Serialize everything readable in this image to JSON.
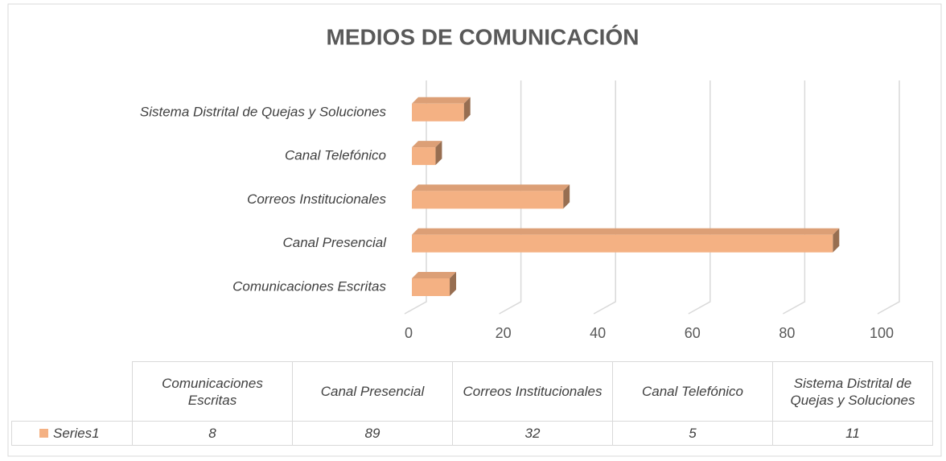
{
  "chart_data": {
    "type": "bar",
    "title": "MEDIOS DE COMUNICACIÓN",
    "categories": [
      "Comunicaciones Escritas",
      "Canal Presencial",
      "Correos Institucionales",
      "Canal Telefónico",
      "Sistema Distrital de Quejas y Soluciones"
    ],
    "series": [
      {
        "name": "Series1",
        "color": "#f4b183",
        "values": [
          8,
          89,
          32,
          5,
          11
        ]
      }
    ],
    "xlim": [
      0,
      100
    ],
    "xticks": [
      0,
      20,
      40,
      60,
      80,
      100
    ],
    "grid": true
  }
}
